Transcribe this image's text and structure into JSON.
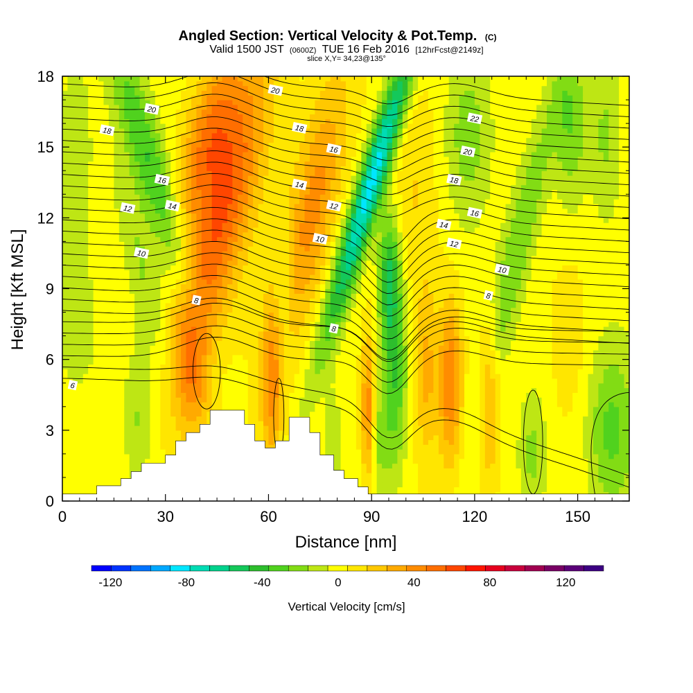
{
  "chart_data": {
    "type": "heatmap",
    "title": "Angled Section: Vertical Velocity & Pot.Temp.",
    "title_unit": "(C)",
    "subtitle_parts": [
      "Valid 1500 JST",
      "(0600Z)",
      "TUE 16 Feb 2016",
      "[12hrFcst@2149z]"
    ],
    "subtitle2": "slice X,Y= 34,23@135°",
    "xlabel": "Distance [nm]",
    "ylabel": "Height [Kft MSL]",
    "xlim": [
      0,
      165
    ],
    "ylim": [
      0,
      18
    ],
    "xticks": [
      0,
      30,
      60,
      90,
      120,
      150
    ],
    "yticks": [
      0,
      3,
      6,
      9,
      12,
      15,
      18
    ],
    "colorbar": {
      "label": "Vertical Velocity [cm/s]",
      "ticks": [
        -120,
        -80,
        -40,
        0,
        40,
        80,
        120
      ],
      "range": [
        -130,
        140
      ],
      "colors": [
        "#0000ff",
        "#0033ff",
        "#0073ff",
        "#00a8ff",
        "#00e6ff",
        "#00dcb4",
        "#00d28c",
        "#14c85a",
        "#2dbe2d",
        "#50d21e",
        "#82dc14",
        "#bee614",
        "#ffff00",
        "#ffe600",
        "#ffc800",
        "#ffaa00",
        "#ff8c00",
        "#ff6e00",
        "#ff4600",
        "#ff1400",
        "#e6001e",
        "#c8003c",
        "#a00050",
        "#780064",
        "#5a0078",
        "#3c0082"
      ]
    },
    "terrain_profile": [
      [
        0,
        0.3
      ],
      [
        10,
        0.3
      ],
      [
        10,
        0.65
      ],
      [
        17,
        0.65
      ],
      [
        17,
        0.95
      ],
      [
        20,
        0.95
      ],
      [
        20,
        1.25
      ],
      [
        23,
        1.25
      ],
      [
        23,
        1.6
      ],
      [
        30,
        1.6
      ],
      [
        30,
        1.95
      ],
      [
        33,
        1.95
      ],
      [
        33,
        2.55
      ],
      [
        36,
        2.55
      ],
      [
        36,
        2.9
      ],
      [
        40,
        2.9
      ],
      [
        40,
        3.25
      ],
      [
        43,
        3.25
      ],
      [
        43,
        3.85
      ],
      [
        53,
        3.85
      ],
      [
        53,
        3.25
      ],
      [
        56,
        3.25
      ],
      [
        56,
        2.55
      ],
      [
        59,
        2.55
      ],
      [
        59,
        2.25
      ],
      [
        62,
        2.25
      ],
      [
        62,
        2.55
      ],
      [
        66,
        2.55
      ],
      [
        66,
        3.55
      ],
      [
        72,
        3.55
      ],
      [
        72,
        2.9
      ],
      [
        75,
        2.9
      ],
      [
        75,
        1.95
      ],
      [
        79,
        1.95
      ],
      [
        79,
        1.3
      ],
      [
        82,
        1.3
      ],
      [
        82,
        0.95
      ],
      [
        86,
        0.95
      ],
      [
        86,
        0.6
      ],
      [
        89,
        0.6
      ],
      [
        89,
        0.3
      ],
      [
        165,
        0.3
      ]
    ],
    "velocity_features": [
      {
        "x": 25,
        "y": 14.5,
        "sx": 4,
        "sy": 4.5,
        "w": -38,
        "tilt": -0.25
      },
      {
        "x": 23,
        "y": 10,
        "sx": 3.5,
        "sy": 3.5,
        "w": -18,
        "tilt": -0.2
      },
      {
        "x": 22,
        "y": 3.5,
        "sx": 3,
        "sy": 2.2,
        "w": -20,
        "tilt": 0
      },
      {
        "x": 46,
        "y": 12,
        "sx": 6,
        "sy": 4.5,
        "w": 55,
        "tilt": 0.2
      },
      {
        "x": 42,
        "y": 15.5,
        "sx": 5,
        "sy": 2.5,
        "w": 40,
        "tilt": 0.2
      },
      {
        "x": 38,
        "y": 5.5,
        "sx": 4,
        "sy": 2.2,
        "w": 35,
        "tilt": 0
      },
      {
        "x": 73,
        "y": 12.5,
        "sx": 5,
        "sy": 4,
        "w": 40,
        "tilt": 0.15
      },
      {
        "x": 90,
        "y": 13.5,
        "sx": 2.8,
        "sy": 4.5,
        "w": -85,
        "tilt": 0.25
      },
      {
        "x": 95,
        "y": 9.5,
        "sx": 2.2,
        "sy": 2,
        "w": -45,
        "tilt": 0
      },
      {
        "x": 97,
        "y": 5.5,
        "sx": 2.5,
        "sy": 3,
        "w": -38,
        "tilt": 0
      },
      {
        "x": 92,
        "y": 2.5,
        "sx": 2.5,
        "sy": 2,
        "w": -20,
        "tilt": 0
      },
      {
        "x": 79,
        "y": 2.5,
        "sx": 2,
        "sy": 1.8,
        "w": -10,
        "tilt": 0
      },
      {
        "x": 89,
        "y": 3.8,
        "sx": 1.4,
        "sy": 2.2,
        "w": 45,
        "tilt": 0
      },
      {
        "x": 61,
        "y": 5,
        "sx": 2.2,
        "sy": 2.5,
        "w": 35,
        "tilt": 0
      },
      {
        "x": 113,
        "y": 5,
        "sx": 2.5,
        "sy": 2.5,
        "w": 45,
        "tilt": 0
      },
      {
        "x": 106,
        "y": 5.5,
        "sx": 2.2,
        "sy": 2.5,
        "w": 25,
        "tilt": 0
      },
      {
        "x": 124,
        "y": 4.5,
        "sx": 2.2,
        "sy": 2.5,
        "w": 35,
        "tilt": 0
      },
      {
        "x": 133,
        "y": 11,
        "sx": 3.5,
        "sy": 5,
        "w": -28,
        "tilt": 0.2
      },
      {
        "x": 118,
        "y": 15.5,
        "sx": 4.5,
        "sy": 2.5,
        "w": -22,
        "tilt": 0
      },
      {
        "x": 148,
        "y": 16,
        "sx": 3.5,
        "sy": 2.5,
        "w": -28,
        "tilt": 0
      },
      {
        "x": 158,
        "y": 15.5,
        "sx": 3,
        "sy": 2.5,
        "w": -18,
        "tilt": 0
      },
      {
        "x": 160,
        "y": 3,
        "sx": 5,
        "sy": 2.5,
        "w": -30,
        "tilt": 0
      },
      {
        "x": 137,
        "y": 2,
        "sx": 3,
        "sy": 2,
        "w": -22,
        "tilt": 0
      },
      {
        "x": 4,
        "y": 14,
        "sx": 4,
        "sy": 4,
        "w": -15,
        "tilt": 0
      },
      {
        "x": 5,
        "y": 7,
        "sx": 5,
        "sy": 2,
        "w": -12,
        "tilt": 0
      },
      {
        "x": 64,
        "y": 9,
        "sx": 2,
        "sy": 2,
        "w": -15,
        "tilt": 0
      },
      {
        "x": 103,
        "y": 13,
        "sx": 4,
        "sy": 3,
        "w": 12,
        "tilt": 0
      },
      {
        "x": 148,
        "y": 7,
        "sx": 3,
        "sy": 2,
        "w": 10,
        "tilt": 0
      }
    ],
    "isentropes": [
      {
        "level": 6,
        "y_left": 4.9,
        "y_right": 0.5,
        "label": "6",
        "label_x": 3
      },
      {
        "level": 8,
        "y_left": 7.7,
        "y_right": 7.6,
        "label": "8",
        "label_x": 79
      },
      {
        "level": 8,
        "y_left": 8.5,
        "y_right": 8.7,
        "label": "8",
        "label_x": 40
      },
      {
        "level": 10,
        "y_left": 10.5,
        "y_right": 9.4,
        "label": "10",
        "label_x": 23
      },
      {
        "level": 12,
        "y_left": 12.4,
        "y_right": 11.0,
        "label": "12",
        "label_x": 20
      },
      {
        "level": 14,
        "y_left": 14.2,
        "y_right": 12.5,
        "label": "14",
        "label_x": 32
      },
      {
        "level": 16,
        "y_left": 15.5,
        "y_right": 14.0,
        "label": "16",
        "label_x": 30
      },
      {
        "level": 18,
        "y_left": 16.8,
        "y_right": 15.8,
        "label": "18",
        "label_x": 13
      },
      {
        "level": 20,
        "y_left": 17.8,
        "y_right": 17.2,
        "label": "20",
        "label_x": 25
      }
    ],
    "isentrope_labels": [
      {
        "text": "6",
        "x": 3,
        "y": 4.9
      },
      {
        "text": "8",
        "x": 39,
        "y": 8.5
      },
      {
        "text": "8",
        "x": 79,
        "y": 7.3
      },
      {
        "text": "8",
        "x": 124,
        "y": 8.7
      },
      {
        "text": "10",
        "x": 23,
        "y": 10.5
      },
      {
        "text": "10",
        "x": 75,
        "y": 11.1
      },
      {
        "text": "10",
        "x": 128,
        "y": 9.8
      },
      {
        "text": "12",
        "x": 19,
        "y": 12.4
      },
      {
        "text": "12",
        "x": 79,
        "y": 12.5
      },
      {
        "text": "12",
        "x": 114,
        "y": 10.9
      },
      {
        "text": "14",
        "x": 32,
        "y": 12.5
      },
      {
        "text": "14",
        "x": 69,
        "y": 13.4
      },
      {
        "text": "14",
        "x": 111,
        "y": 11.7
      },
      {
        "text": "16",
        "x": 29,
        "y": 13.6
      },
      {
        "text": "16",
        "x": 79,
        "y": 14.9
      },
      {
        "text": "16",
        "x": 120,
        "y": 12.2
      },
      {
        "text": "18",
        "x": 13,
        "y": 15.7
      },
      {
        "text": "18",
        "x": 69,
        "y": 15.8
      },
      {
        "text": "18",
        "x": 114,
        "y": 13.6
      },
      {
        "text": "20",
        "x": 26,
        "y": 16.6
      },
      {
        "text": "20",
        "x": 62,
        "y": 17.4
      },
      {
        "text": "20",
        "x": 118,
        "y": 14.8
      },
      {
        "text": "22",
        "x": 120,
        "y": 16.2
      }
    ]
  }
}
